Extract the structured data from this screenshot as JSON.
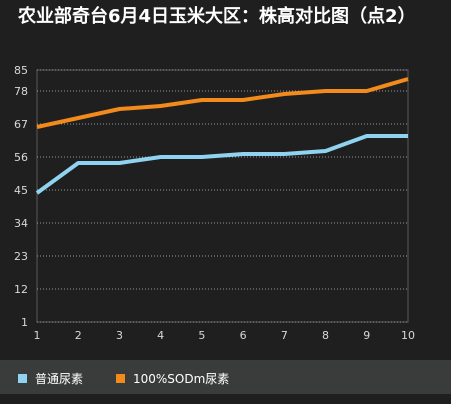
{
  "chart_data": {
    "type": "line",
    "title": "农业部奇台6月4日玉米大区：株高对比图（点2）",
    "xlabel": "",
    "ylabel": "",
    "x": [
      1,
      2,
      3,
      4,
      5,
      6,
      7,
      8,
      9,
      10
    ],
    "y_ticks": [
      "1",
      "12",
      "23",
      "34",
      "45",
      "56",
      "67",
      "78",
      "85"
    ],
    "ylim": [
      1,
      85
    ],
    "grid": "horizontal dotted",
    "legend_position": "bottom",
    "series": [
      {
        "name": "普通尿素",
        "color": "#8fd3f0",
        "values": [
          44,
          54,
          54,
          56,
          56,
          57,
          57,
          58,
          63,
          63
        ]
      },
      {
        "name": "100%SODm尿素",
        "color": "#f28a1c",
        "values": [
          66,
          69,
          72,
          73,
          75,
          75,
          77,
          78,
          78,
          82
        ]
      }
    ]
  }
}
